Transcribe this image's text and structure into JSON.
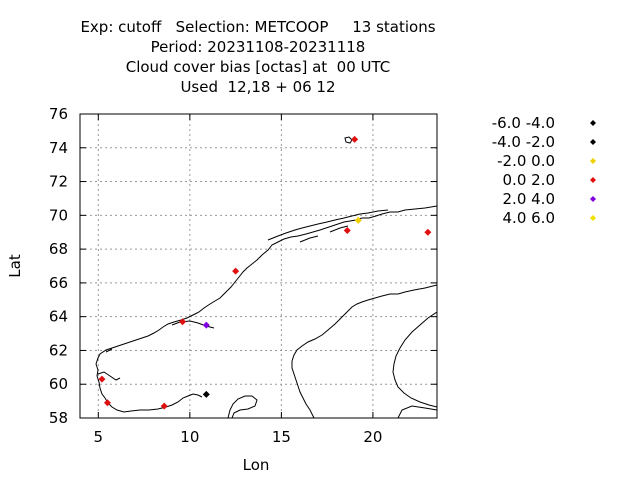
{
  "title_lines": [
    "Exp: cutoff   Selection: METCOOP     13 stations",
    "Period: 20231108-20231118",
    "Cloud cover bias [octas] at  00 UTC",
    "Used  12,18 + 06 12"
  ],
  "chart_data": {
    "type": "scatter",
    "xlabel": "Lon",
    "ylabel": "Lat",
    "xlim": [
      4,
      23.5
    ],
    "ylim": [
      58,
      76
    ],
    "x_ticks": [
      5,
      10,
      15,
      20
    ],
    "y_ticks": [
      58,
      60,
      62,
      64,
      66,
      68,
      70,
      72,
      74,
      76
    ],
    "grid": true,
    "legend_position": "right",
    "legend": [
      {
        "label": "-6.0 -4.0",
        "color": "#000000"
      },
      {
        "label": "-4.0 -2.0",
        "color": "#000000"
      },
      {
        "label": "-2.0 0.0",
        "color": "#f0d000"
      },
      {
        "label": "0.0 2.0",
        "color": "#e01010"
      },
      {
        "label": "2.0 4.0",
        "color": "#8000e0"
      },
      {
        "label": "4.0 6.0",
        "color": "#f0e000"
      }
    ],
    "points": [
      {
        "lon": 19.0,
        "lat": 74.5,
        "bin": 3
      },
      {
        "lon": 19.2,
        "lat": 69.7,
        "bin": 2
      },
      {
        "lon": 18.6,
        "lat": 69.1,
        "bin": 3
      },
      {
        "lon": 23.0,
        "lat": 69.0,
        "bin": 3
      },
      {
        "lon": 12.5,
        "lat": 66.7,
        "bin": 3
      },
      {
        "lon": 9.6,
        "lat": 63.7,
        "bin": 3
      },
      {
        "lon": 10.9,
        "lat": 63.5,
        "bin": 4
      },
      {
        "lon": 5.2,
        "lat": 60.3,
        "bin": 3
      },
      {
        "lon": 5.5,
        "lat": 58.9,
        "bin": 3
      },
      {
        "lon": 8.6,
        "lat": 58.7,
        "bin": 3
      },
      {
        "lon": 10.9,
        "lat": 59.4,
        "bin": 1
      }
    ]
  }
}
